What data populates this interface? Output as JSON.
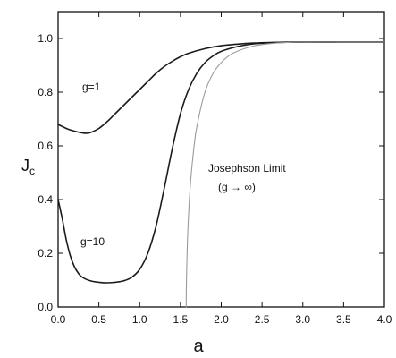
{
  "chart_data": {
    "type": "line",
    "xlabel": "a",
    "ylabel": "J",
    "ylabel_subscript": "c",
    "xlim": [
      0,
      4
    ],
    "ylim": [
      0,
      1.1
    ],
    "grid": false,
    "x_ticks": [
      0.0,
      0.5,
      1.0,
      1.5,
      2.0,
      2.5,
      3.0,
      3.5,
      4.0
    ],
    "x_tick_labels": [
      "0.0",
      "0.5",
      "1.0",
      "1.5",
      "2.0",
      "2.5",
      "3.0",
      "3.5",
      "4.0"
    ],
    "y_ticks": [
      0.0,
      0.2,
      0.4,
      0.6,
      0.8,
      1.0
    ],
    "y_tick_labels": [
      "0.0",
      "0.2",
      "0.4",
      "0.6",
      "0.8",
      "1.0"
    ],
    "series": [
      {
        "name": "g=1",
        "color": "#1a1a1a",
        "x": [
          0.0,
          0.1,
          0.2,
          0.3,
          0.35,
          0.4,
          0.5,
          0.6,
          0.7,
          0.8,
          0.9,
          1.0,
          1.1,
          1.2,
          1.3,
          1.4,
          1.5,
          1.6,
          1.8,
          2.0,
          2.2,
          2.4,
          2.6,
          2.8,
          3.0,
          3.5,
          4.0
        ],
        "y": [
          0.68,
          0.665,
          0.655,
          0.648,
          0.647,
          0.65,
          0.665,
          0.69,
          0.72,
          0.75,
          0.78,
          0.81,
          0.84,
          0.87,
          0.895,
          0.915,
          0.932,
          0.945,
          0.962,
          0.973,
          0.979,
          0.983,
          0.985,
          0.986,
          0.987,
          0.987,
          0.987
        ]
      },
      {
        "name": "g=10",
        "color": "#1a1a1a",
        "x": [
          0.0,
          0.05,
          0.1,
          0.15,
          0.2,
          0.25,
          0.3,
          0.4,
          0.5,
          0.6,
          0.7,
          0.8,
          0.9,
          1.0,
          1.1,
          1.2,
          1.3,
          1.4,
          1.5,
          1.6,
          1.7,
          1.8,
          1.9,
          2.0,
          2.2,
          2.4,
          2.6,
          2.8,
          3.0,
          3.5,
          4.0
        ],
        "y": [
          0.4,
          0.33,
          0.25,
          0.19,
          0.15,
          0.125,
          0.11,
          0.097,
          0.092,
          0.09,
          0.092,
          0.097,
          0.11,
          0.14,
          0.2,
          0.3,
          0.44,
          0.59,
          0.72,
          0.81,
          0.87,
          0.91,
          0.935,
          0.952,
          0.97,
          0.98,
          0.984,
          0.986,
          0.987,
          0.987,
          0.987
        ]
      },
      {
        "name": "Josephson Limit (g → ∞)",
        "color": "#9a9a9a",
        "x": [
          1.57,
          1.575,
          1.59,
          1.62,
          1.66,
          1.7,
          1.8,
          1.9,
          2.0,
          2.1,
          2.2,
          2.4,
          2.6,
          2.8,
          3.0,
          3.5,
          4.0
        ],
        "y": [
          0.0,
          0.12,
          0.28,
          0.45,
          0.58,
          0.67,
          0.8,
          0.87,
          0.91,
          0.937,
          0.953,
          0.972,
          0.981,
          0.985,
          0.987,
          0.987,
          0.987
        ]
      }
    ],
    "annotations": {
      "g1": "g=1",
      "g10": "g=10",
      "josephson_line1": "Josephson Limit",
      "josephson_line2": "(g → ∞)"
    }
  }
}
